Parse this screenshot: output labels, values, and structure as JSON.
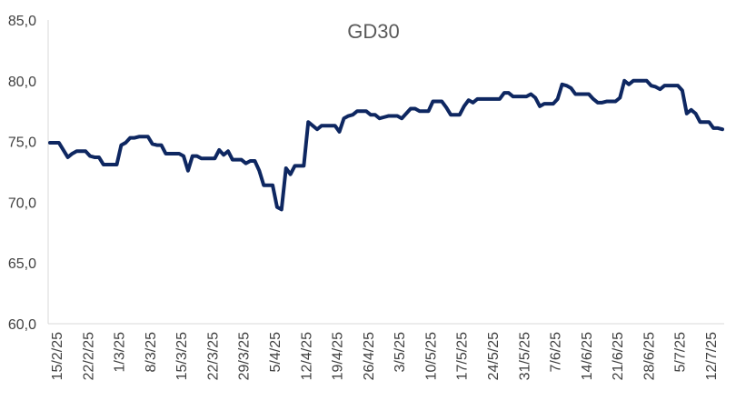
{
  "chart_data": {
    "type": "line",
    "title": "GD30",
    "xlabel": "",
    "ylabel": "",
    "ylim": [
      60,
      85
    ],
    "y_ticks": [
      "60,0",
      "65,0",
      "70,0",
      "75,0",
      "80,0",
      "85,0"
    ],
    "x_ticks": [
      "15/2/25",
      "22/2/25",
      "1/3/25",
      "8/3/25",
      "15/3/25",
      "22/3/25",
      "29/3/25",
      "5/4/25",
      "12/4/25",
      "19/4/25",
      "26/4/25",
      "3/5/25",
      "10/5/25",
      "17/5/25",
      "24/5/25",
      "31/5/25",
      "7/6/25",
      "14/6/25",
      "21/6/25",
      "28/6/25",
      "5/7/25",
      "12/7/25"
    ],
    "series_color": "#0e2761",
    "grid": false,
    "legend": "none",
    "series": [
      {
        "values": [
          74.9,
          74.9,
          74.9,
          74.3,
          73.7,
          74.0,
          74.2,
          74.2,
          74.2,
          73.8,
          73.7,
          73.7,
          73.1,
          73.1,
          73.1,
          73.1,
          74.7,
          74.9,
          75.3,
          75.3,
          75.4,
          75.4,
          75.4,
          74.8,
          74.7,
          74.7,
          74.0,
          74.0,
          74.0,
          74.0,
          73.8,
          72.6,
          73.8,
          73.8,
          73.6,
          73.6,
          73.6,
          73.6,
          74.3,
          73.9,
          74.2,
          73.5,
          73.5,
          73.5,
          73.2,
          73.4,
          73.4,
          72.6,
          71.4,
          71.4,
          71.4,
          69.6,
          69.4,
          72.8,
          72.3,
          73.0,
          73.0,
          73.0,
          76.6,
          76.3,
          76.0,
          76.3,
          76.3,
          76.3,
          76.3,
          75.8,
          76.9,
          77.1,
          77.2,
          77.5,
          77.5,
          77.5,
          77.2,
          77.2,
          76.9,
          77.0,
          77.1,
          77.1,
          77.1,
          76.9,
          77.3,
          77.7,
          77.7,
          77.5,
          77.5,
          77.5,
          78.3,
          78.3,
          78.3,
          77.8,
          77.2,
          77.2,
          77.2,
          77.9,
          78.4,
          78.2,
          78.5,
          78.5,
          78.5,
          78.5,
          78.5,
          78.5,
          79.0,
          79.0,
          78.7,
          78.7,
          78.7,
          78.7,
          78.9,
          78.6,
          77.9,
          78.1,
          78.1,
          78.1,
          78.5,
          79.7,
          79.6,
          79.4,
          78.9,
          78.9,
          78.9,
          78.9,
          78.5,
          78.2,
          78.2,
          78.3,
          78.3,
          78.3,
          78.6,
          80.0,
          79.7,
          80.0,
          80.0,
          80.0,
          80.0,
          79.6,
          79.5,
          79.3,
          79.6,
          79.6,
          79.6,
          79.6,
          79.2,
          77.3,
          77.6,
          77.3,
          76.6,
          76.6,
          76.6,
          76.1,
          76.1,
          76.0
        ]
      }
    ]
  }
}
